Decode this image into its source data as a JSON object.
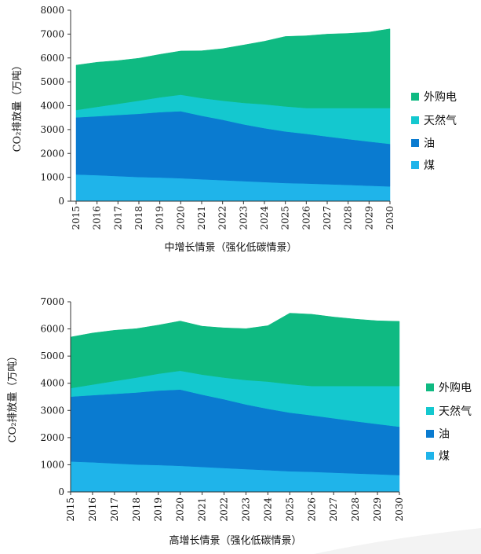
{
  "chart_data": [
    {
      "type": "area",
      "stacked": true,
      "x": [
        "2015",
        "2016",
        "2017",
        "2018",
        "2019",
        "2020",
        "2021",
        "2022",
        "2023",
        "2024",
        "2025",
        "2026",
        "2027",
        "2028",
        "2029",
        "2030"
      ],
      "series": [
        {
          "name": "煤",
          "color": "#1FB4EA",
          "values": [
            1120,
            1090,
            1050,
            1010,
            990,
            960,
            920,
            880,
            840,
            800,
            760,
            740,
            710,
            680,
            650,
            620
          ]
        },
        {
          "name": "油",
          "color": "#0A7BD0",
          "values": [
            2390,
            2470,
            2560,
            2650,
            2740,
            2810,
            2660,
            2530,
            2380,
            2260,
            2160,
            2080,
            2000,
            1920,
            1850,
            1780
          ]
        },
        {
          "name": "天然气",
          "color": "#14C8CF",
          "values": [
            310,
            390,
            470,
            550,
            620,
            690,
            740,
            800,
            900,
            1000,
            1050,
            1080,
            1190,
            1300,
            1400,
            1500
          ]
        },
        {
          "name": "外购电",
          "color": "#0FBA82",
          "values": [
            1880,
            1870,
            1810,
            1780,
            1800,
            1830,
            1980,
            2180,
            2420,
            2640,
            2930,
            3030,
            3100,
            3130,
            3180,
            3320
          ]
        }
      ],
      "ylim": [
        0,
        8000
      ],
      "yticks": [
        0,
        1000,
        2000,
        3000,
        4000,
        5000,
        6000,
        7000,
        8000
      ],
      "ylabel": "CO₂排放量（万吨）",
      "xlabel": "中增长情景（强化低碳情景）",
      "legend": "right"
    },
    {
      "type": "area",
      "stacked": true,
      "x": [
        "2015",
        "2016",
        "2017",
        "2018",
        "2019",
        "2020",
        "2021",
        "2022",
        "2023",
        "2024",
        "2025",
        "2026",
        "2027",
        "2028",
        "2029",
        "2030"
      ],
      "series": [
        {
          "name": "煤",
          "color": "#1FB4EA",
          "values": [
            1120,
            1090,
            1050,
            1010,
            990,
            960,
            920,
            880,
            840,
            800,
            760,
            740,
            710,
            680,
            650,
            620
          ]
        },
        {
          "name": "油",
          "color": "#0A7BD0",
          "values": [
            2390,
            2470,
            2560,
            2650,
            2740,
            2810,
            2660,
            2530,
            2380,
            2260,
            2160,
            2080,
            2000,
            1920,
            1850,
            1780
          ]
        },
        {
          "name": "天然气",
          "color": "#14C8CF",
          "values": [
            310,
            390,
            470,
            550,
            620,
            690,
            740,
            800,
            900,
            1000,
            1050,
            1080,
            1190,
            1300,
            1400,
            1500
          ]
        },
        {
          "name": "外购电",
          "color": "#0FBA82",
          "values": [
            1880,
            1900,
            1870,
            1800,
            1790,
            1830,
            1780,
            1830,
            1890,
            2060,
            2610,
            2640,
            2540,
            2460,
            2400,
            2380
          ]
        }
      ],
      "ylim": [
        0,
        7000
      ],
      "yticks": [
        0,
        1000,
        2000,
        3000,
        4000,
        5000,
        6000,
        7000
      ],
      "ylabel": "CO₂排放量（万吨）",
      "xlabel": "高增长情景（强化低碳情景）",
      "legend": "right"
    }
  ]
}
